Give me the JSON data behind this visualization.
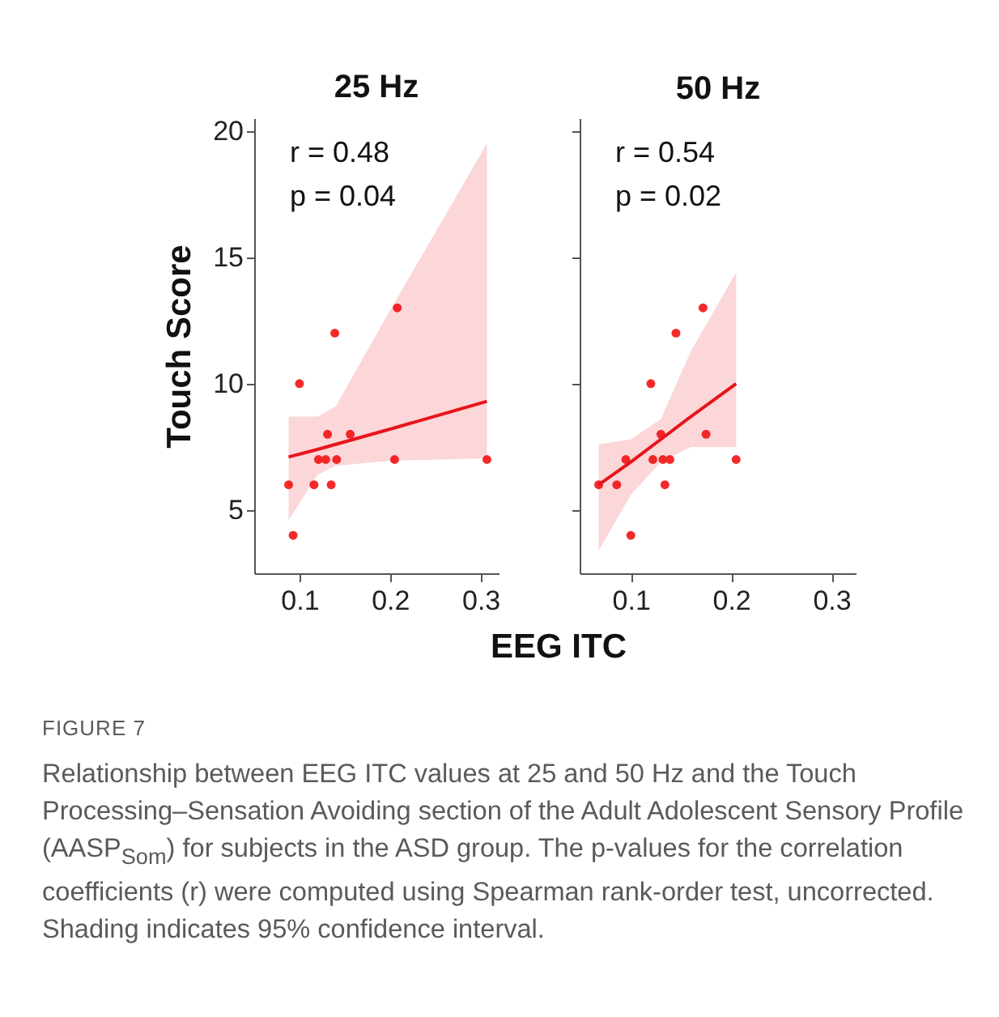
{
  "chart_data": [
    {
      "type": "scatter",
      "title": "25 Hz",
      "xlabel": "EEG ITC",
      "ylabel": "Touch Score",
      "xlim": [
        0.05,
        0.32
      ],
      "xticks": [
        0.1,
        0.2,
        0.3
      ],
      "ylim": [
        2.5,
        20.5
      ],
      "yticks": [
        5,
        10,
        15,
        20
      ],
      "grid": false,
      "annotations": [
        "r = 0.48",
        "p = 0.04"
      ],
      "series": [
        {
          "marker": "circle",
          "color": "#f52a2a",
          "x": [
            0.088,
            0.093,
            0.1,
            0.116,
            0.121,
            0.129,
            0.131,
            0.135,
            0.139,
            0.141,
            0.156,
            0.205,
            0.208,
            0.307
          ],
          "values": [
            6,
            4,
            10,
            6,
            7,
            7,
            8,
            6,
            12,
            7,
            8,
            7,
            13,
            7
          ]
        },
        {
          "type": "line",
          "color": "#e8141b",
          "x": [
            0.088,
            0.12,
            0.14,
            0.2,
            0.307
          ],
          "values": [
            7.1,
            7.4,
            7.6,
            8.2,
            9.3
          ],
          "lower": [
            4.6,
            6.4,
            6.75,
            6.95,
            7.05
          ],
          "upper": [
            8.7,
            8.7,
            9.1,
            12.9,
            19.5
          ]
        }
      ]
    },
    {
      "type": "scatter",
      "title": "50 Hz",
      "xlim": [
        0.049,
        0.325
      ],
      "xticks": [
        0.1,
        0.2,
        0.3
      ],
      "ylim": [
        2.5,
        20.5
      ],
      "yticks": [
        5,
        10,
        15,
        20
      ],
      "tick_labels": "x",
      "grid": false,
      "annotations": [
        "r = 0.54",
        "p = 0.02",
        "FIGURE 7",
        "Relationship between EEG ITC values at 25 and 50 Hz and the Touch Processing–Sensation Avoiding section of the Adult Adolescent Sensory Profile (AASP$_{Som}$) for subjects in the ASD group. The p-values for the correlation coefficients (r) were computed using Spearman rank-order test, uncorrected. Shading indicates 95% confidence interval."
      ],
      "series": [
        {
          "marker": "circle",
          "color": "#f52a2a",
          "x": [
            0.068,
            0.086,
            0.095,
            0.1,
            0.12,
            0.122,
            0.13,
            0.132,
            0.134,
            0.139,
            0.145,
            0.172,
            0.175,
            0.205
          ],
          "values": [
            6,
            6,
            7,
            4,
            10,
            7,
            8,
            7,
            6,
            7,
            12,
            13,
            8,
            7
          ]
        },
        {
          "type": "line",
          "color": "#e8141b",
          "x": [
            0.068,
            0.1,
            0.13,
            0.16,
            0.205
          ],
          "values": [
            6,
            6.9,
            7.8,
            8.7,
            10
          ],
          "lower": [
            3.4,
            5.6,
            6.9,
            7.5,
            7.5
          ],
          "upper": [
            7.6,
            7.8,
            8.6,
            11.3,
            14.4
          ]
        }
      ]
    }
  ]
}
